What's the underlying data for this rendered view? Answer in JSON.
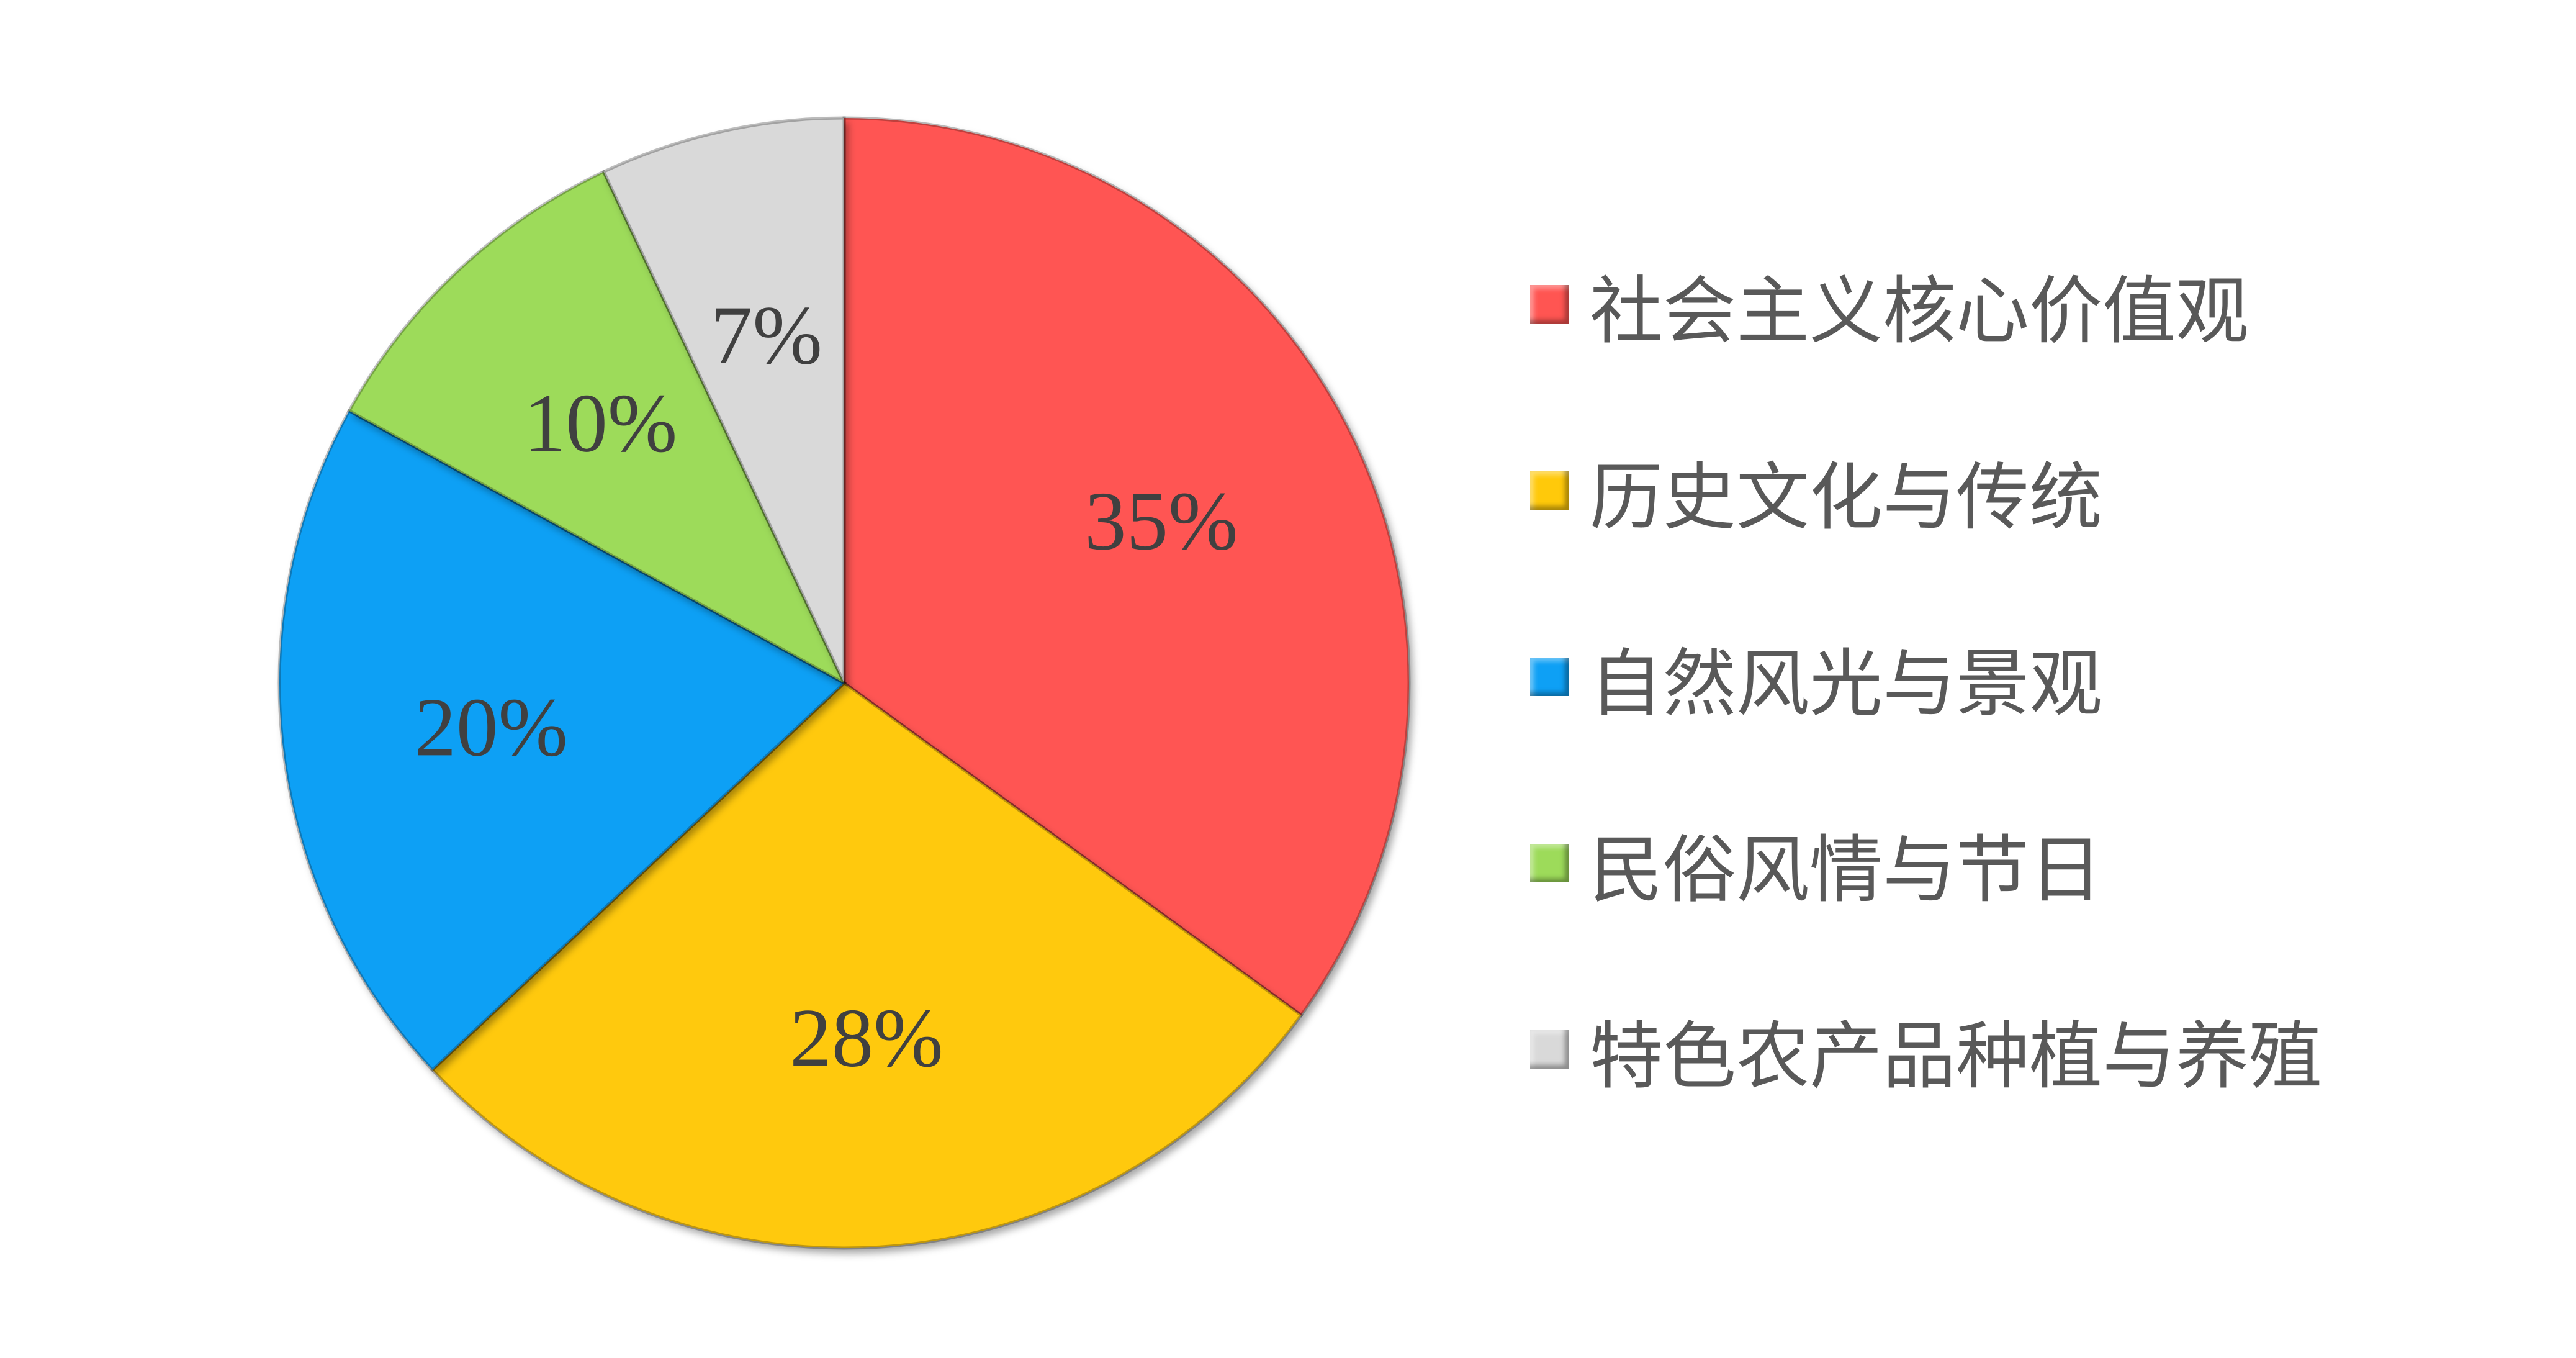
{
  "chart_data": {
    "type": "pie",
    "start": "top, clockwise",
    "legend_position": "right",
    "slices": [
      {
        "name": "社会主义核心价值观",
        "value": 35,
        "label": "35%",
        "color": "#FF5552"
      },
      {
        "name": "历史文化与传统",
        "value": 28,
        "label": "28%",
        "color": "#FFC90A"
      },
      {
        "name": "自然风光与景观",
        "value": 20,
        "label": "20%",
        "color": "#0EA0F5"
      },
      {
        "name": "民俗风情与节日",
        "value": 10,
        "label": "10%",
        "color": "#9DDB5A"
      },
      {
        "name": "特色农产品种植与养殖",
        "value": 7,
        "label": "7%",
        "color": "#D9D9D9"
      }
    ]
  }
}
